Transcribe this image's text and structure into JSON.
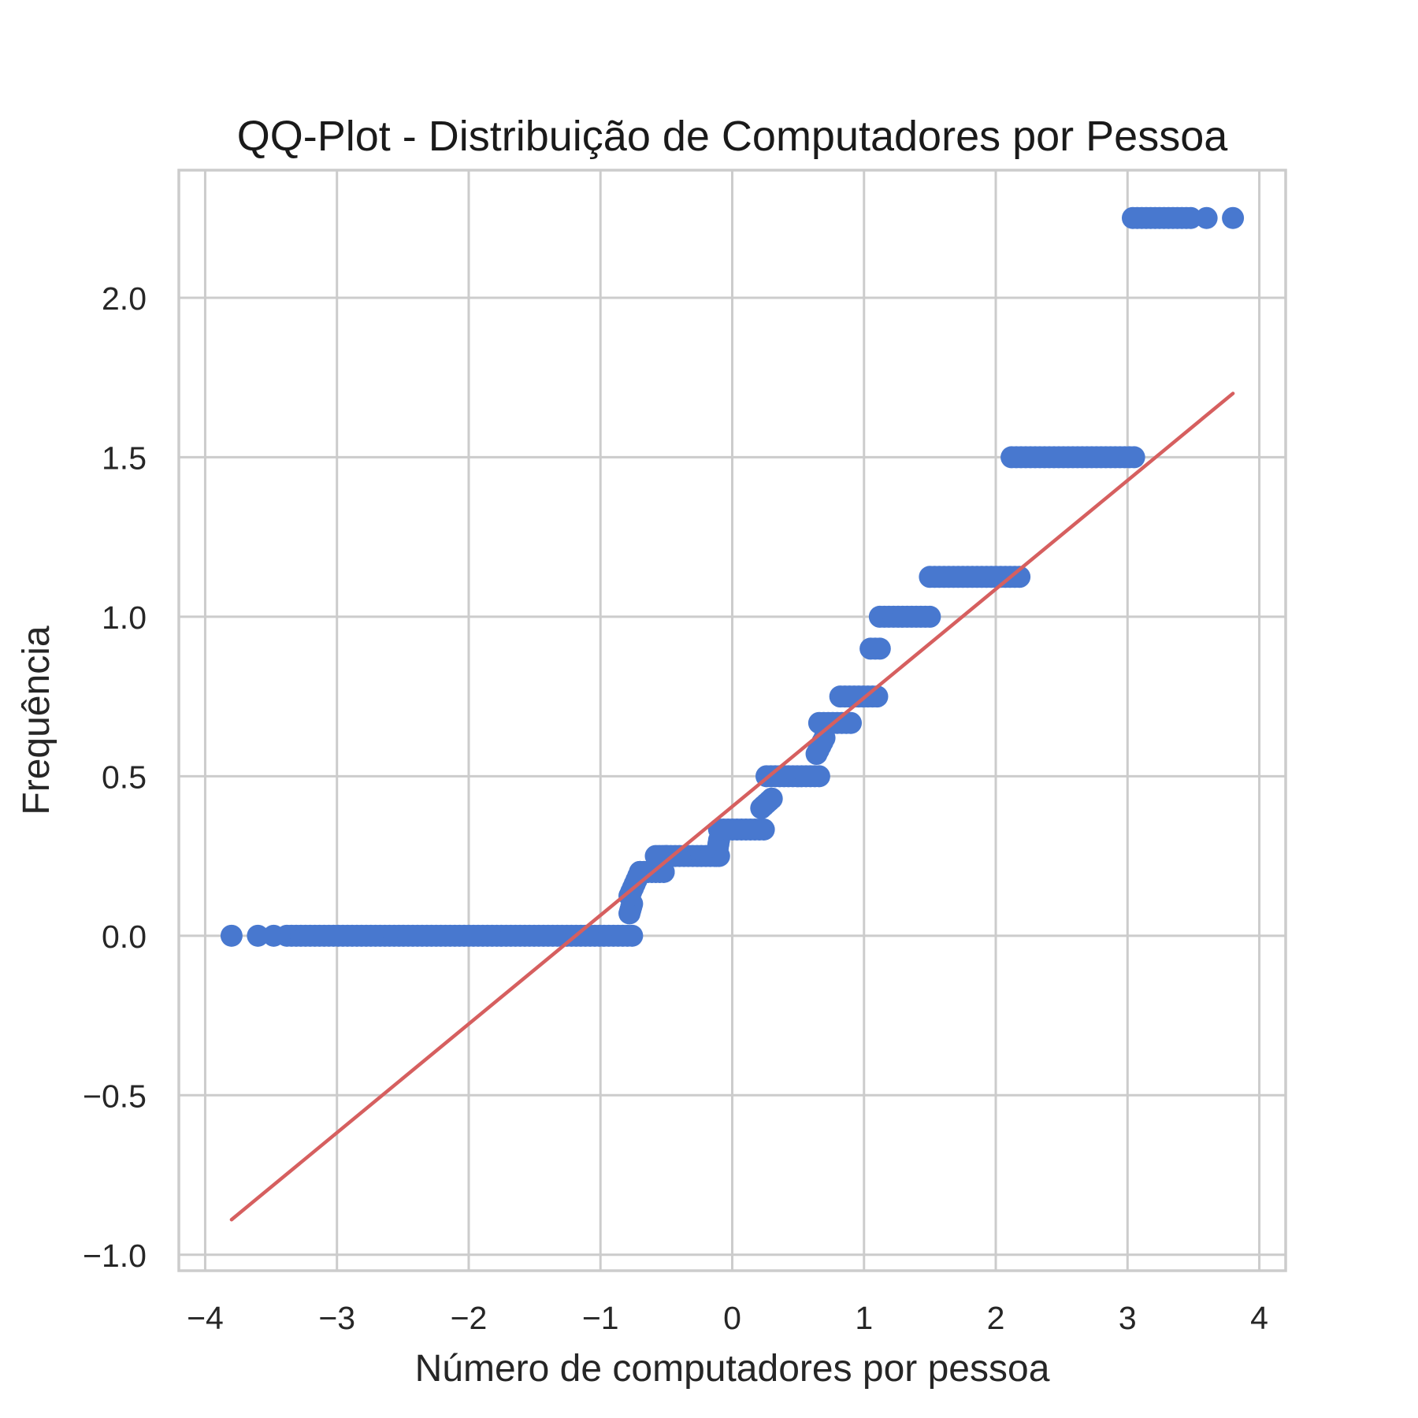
{
  "chart_data": {
    "type": "scatter",
    "title": "QQ-Plot - Distribuição de Computadores por Pessoa",
    "xlabel": "Número de computadores por pessoa",
    "ylabel": "Frequência",
    "xlim": [
      -4.2,
      4.2
    ],
    "ylim": [
      -1.05,
      2.4
    ],
    "xticks": [
      -4,
      -3,
      -2,
      -1,
      0,
      1,
      2,
      3,
      4
    ],
    "xtick_labels": [
      "−4",
      "−3",
      "−2",
      "−1",
      "0",
      "1",
      "2",
      "3",
      "4"
    ],
    "yticks": [
      -1.0,
      -0.5,
      0.0,
      0.5,
      1.0,
      1.5,
      2.0
    ],
    "ytick_labels": [
      "−1.0",
      "−0.5",
      "0.0",
      "0.5",
      "1.0",
      "1.5",
      "2.0"
    ],
    "grid": true,
    "colors": {
      "points": "#4878cf",
      "fit_line": "#d65f5f",
      "grid": "#cccccc",
      "frame": "#cccccc",
      "text": "#262626"
    },
    "series": [
      {
        "kind": "points",
        "segments": [
          {
            "x0": -3.8,
            "x1": -3.8,
            "y0": 0.0,
            "y1": 0.0
          },
          {
            "x0": -3.6,
            "x1": -3.6,
            "y0": 0.0,
            "y1": 0.0
          },
          {
            "x0": -3.48,
            "x1": -3.48,
            "y0": 0.0,
            "y1": 0.0
          },
          {
            "x0": -3.38,
            "x1": -0.76,
            "y0": 0.0,
            "y1": 0.0
          },
          {
            "x0": -0.78,
            "x1": -0.76,
            "y0": 0.07,
            "y1": 0.1
          },
          {
            "x0": -0.78,
            "x1": -0.7,
            "y0": 0.125,
            "y1": 0.2
          },
          {
            "x0": -0.7,
            "x1": -0.52,
            "y0": 0.2,
            "y1": 0.2
          },
          {
            "x0": -0.7,
            "x1": -0.52,
            "y0": 0.2,
            "y1": 0.2
          },
          {
            "x0": -0.58,
            "x1": -0.5,
            "y0": 0.25,
            "y1": 0.25
          },
          {
            "x0": -0.5,
            "x1": -0.1,
            "y0": 0.25,
            "y1": 0.25
          },
          {
            "x0": -0.12,
            "x1": -0.1,
            "y0": 0.25,
            "y1": 0.3
          },
          {
            "x0": -0.1,
            "x1": 0.24,
            "y0": 0.333,
            "y1": 0.333
          },
          {
            "x0": 0.22,
            "x1": 0.3,
            "y0": 0.4,
            "y1": 0.43
          },
          {
            "x0": 0.26,
            "x1": 0.66,
            "y0": 0.5,
            "y1": 0.5
          },
          {
            "x0": 0.64,
            "x1": 0.7,
            "y0": 0.57,
            "y1": 0.62
          },
          {
            "x0": 0.66,
            "x1": 0.9,
            "y0": 0.667,
            "y1": 0.667
          },
          {
            "x0": 0.82,
            "x1": 1.1,
            "y0": 0.75,
            "y1": 0.75
          },
          {
            "x0": 1.05,
            "x1": 1.12,
            "y0": 0.9,
            "y1": 0.9
          },
          {
            "x0": 1.12,
            "x1": 1.5,
            "y0": 1.0,
            "y1": 1.0
          },
          {
            "x0": 1.5,
            "x1": 2.18,
            "y0": 1.125,
            "y1": 1.125
          },
          {
            "x0": 2.12,
            "x1": 3.05,
            "y0": 1.5,
            "y1": 1.5
          },
          {
            "x0": 3.04,
            "x1": 3.48,
            "y0": 2.25,
            "y1": 2.25
          },
          {
            "x0": 3.6,
            "x1": 3.6,
            "y0": 2.25,
            "y1": 2.25
          },
          {
            "x0": 3.8,
            "x1": 3.8,
            "y0": 2.25,
            "y1": 2.25
          }
        ]
      },
      {
        "kind": "line",
        "x": [
          -3.8,
          3.8
        ],
        "y": [
          -0.89,
          1.7
        ]
      }
    ]
  }
}
